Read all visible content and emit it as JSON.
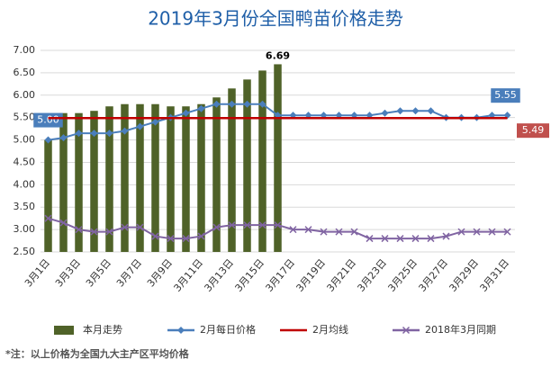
{
  "chart_data": {
    "type": "combo",
    "title": "2019年3月份全国鸭苗价格走势",
    "note": "*注：以上价格为全国九大主产区平均价格",
    "categories": [
      "3月1日",
      null,
      "3月3日",
      null,
      "3月5日",
      null,
      "3月7日",
      null,
      "3月9日",
      null,
      "3月11日",
      null,
      "3月13日",
      null,
      "3月15日",
      null,
      "3月17日",
      null,
      "3月19日",
      null,
      "3月21日",
      null,
      "3月23日",
      null,
      "3月25日",
      null,
      "3月27日",
      null,
      "3月29日",
      null,
      "3月31日"
    ],
    "ylim": [
      2.5,
      7.0
    ],
    "yticks": [
      {
        "value": 2.5,
        "label": "2.50"
      },
      {
        "value": 3.0,
        "label": "3.00"
      },
      {
        "value": 3.5,
        "label": "3.50"
      },
      {
        "value": 4.0,
        "label": "4.00"
      },
      {
        "value": 4.5,
        "label": "4.50"
      },
      {
        "value": 5.0,
        "label": "5.00"
      },
      {
        "value": 5.5,
        "label": "5.50"
      },
      {
        "value": 6.0,
        "label": "6.00"
      },
      {
        "value": 6.5,
        "label": "6.50"
      },
      {
        "value": 7.0,
        "label": "7.00"
      }
    ],
    "grid": true,
    "series": [
      {
        "name": "本月走势",
        "type": "bar",
        "color": "#4f6228",
        "values": [
          5.0,
          5.6,
          5.6,
          5.65,
          5.75,
          5.8,
          5.8,
          5.8,
          5.75,
          5.75,
          5.8,
          5.95,
          6.15,
          6.35,
          6.55,
          6.69,
          null,
          null,
          null,
          null,
          null,
          null,
          null,
          null,
          null,
          null,
          null,
          null,
          null,
          null,
          null
        ],
        "value_labels": [
          null,
          null,
          null,
          null,
          null,
          null,
          null,
          null,
          null,
          null,
          null,
          null,
          null,
          null,
          null,
          "6.69",
          null,
          null,
          null,
          null,
          null,
          null,
          null,
          null,
          null,
          null,
          null,
          null,
          null,
          null,
          null
        ]
      },
      {
        "name": "2月每日价格",
        "type": "line",
        "marker": "diamond",
        "color": "#4a7ebb",
        "values": [
          5.0,
          5.05,
          5.15,
          5.15,
          5.15,
          5.2,
          5.3,
          5.4,
          5.5,
          5.6,
          5.7,
          5.8,
          5.8,
          5.8,
          5.8,
          5.55,
          5.55,
          5.55,
          5.55,
          5.55,
          5.55,
          5.55,
          5.6,
          5.65,
          5.65,
          5.65,
          5.5,
          5.5,
          5.5,
          5.55,
          5.55
        ],
        "value_labels": [
          "5.00",
          null,
          null,
          null,
          null,
          null,
          null,
          null,
          null,
          null,
          null,
          null,
          null,
          null,
          null,
          null,
          null,
          null,
          null,
          null,
          null,
          null,
          null,
          null,
          null,
          null,
          null,
          null,
          null,
          null,
          "5.55"
        ]
      },
      {
        "name": "2月均线",
        "type": "line",
        "marker": "none",
        "color": "#c00000",
        "values": [
          5.49,
          5.49,
          5.49,
          5.49,
          5.49,
          5.49,
          5.49,
          5.49,
          5.49,
          5.49,
          5.49,
          5.49,
          5.49,
          5.49,
          5.49,
          5.49,
          5.49,
          5.49,
          5.49,
          5.49,
          5.49,
          5.49,
          5.49,
          5.49,
          5.49,
          5.49,
          5.49,
          5.49,
          5.49,
          5.49,
          5.49
        ]
      },
      {
        "name": "2018年3月同期",
        "type": "line",
        "marker": "x",
        "color": "#8064a2",
        "values": [
          3.25,
          3.15,
          3.0,
          2.95,
          2.95,
          3.05,
          3.05,
          2.85,
          2.8,
          2.8,
          2.85,
          3.05,
          3.1,
          3.1,
          3.1,
          3.1,
          3.0,
          3.0,
          2.95,
          2.95,
          2.95,
          2.8,
          2.8,
          2.8,
          2.8,
          2.8,
          2.85,
          2.95,
          2.95,
          2.95,
          2.95
        ]
      }
    ]
  }
}
